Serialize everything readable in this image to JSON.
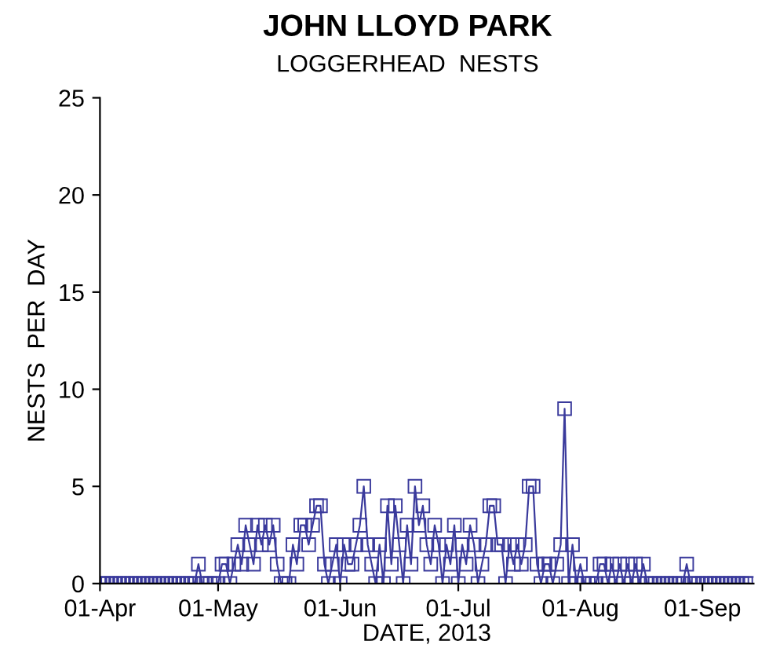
{
  "chart_data": {
    "type": "line",
    "title": "JOHN LLOYD PARK",
    "subtitle": "LOGGERHEAD  NESTS",
    "xlabel": "DATE, 2013",
    "ylabel": "NESTS  PER  DAY",
    "x": [
      "2013-04-01",
      "2013-04-02",
      "2013-04-03",
      "2013-04-04",
      "2013-04-05",
      "2013-04-06",
      "2013-04-07",
      "2013-04-08",
      "2013-04-09",
      "2013-04-10",
      "2013-04-11",
      "2013-04-12",
      "2013-04-13",
      "2013-04-14",
      "2013-04-15",
      "2013-04-16",
      "2013-04-17",
      "2013-04-18",
      "2013-04-19",
      "2013-04-20",
      "2013-04-21",
      "2013-04-22",
      "2013-04-23",
      "2013-04-24",
      "2013-04-25",
      "2013-04-26",
      "2013-04-27",
      "2013-04-28",
      "2013-04-29",
      "2013-04-30",
      "2013-05-01",
      "2013-05-02",
      "2013-05-03",
      "2013-05-04",
      "2013-05-05",
      "2013-05-06",
      "2013-05-07",
      "2013-05-08",
      "2013-05-09",
      "2013-05-10",
      "2013-05-11",
      "2013-05-12",
      "2013-05-13",
      "2013-05-14",
      "2013-05-15",
      "2013-05-16",
      "2013-05-17",
      "2013-05-18",
      "2013-05-19",
      "2013-05-20",
      "2013-05-21",
      "2013-05-22",
      "2013-05-23",
      "2013-05-24",
      "2013-05-25",
      "2013-05-26",
      "2013-05-27",
      "2013-05-28",
      "2013-05-29",
      "2013-05-30",
      "2013-05-31",
      "2013-06-01",
      "2013-06-02",
      "2013-06-03",
      "2013-06-04",
      "2013-06-05",
      "2013-06-06",
      "2013-06-07",
      "2013-06-08",
      "2013-06-09",
      "2013-06-10",
      "2013-06-11",
      "2013-06-12",
      "2013-06-13",
      "2013-06-14",
      "2013-06-15",
      "2013-06-16",
      "2013-06-17",
      "2013-06-18",
      "2013-06-19",
      "2013-06-20",
      "2013-06-21",
      "2013-06-22",
      "2013-06-23",
      "2013-06-24",
      "2013-06-25",
      "2013-06-26",
      "2013-06-27",
      "2013-06-28",
      "2013-06-29",
      "2013-06-30",
      "2013-07-01",
      "2013-07-02",
      "2013-07-03",
      "2013-07-04",
      "2013-07-05",
      "2013-07-06",
      "2013-07-07",
      "2013-07-08",
      "2013-07-09",
      "2013-07-10",
      "2013-07-11",
      "2013-07-12",
      "2013-07-13",
      "2013-07-14",
      "2013-07-15",
      "2013-07-16",
      "2013-07-17",
      "2013-07-18",
      "2013-07-19",
      "2013-07-20",
      "2013-07-21",
      "2013-07-22",
      "2013-07-23",
      "2013-07-24",
      "2013-07-25",
      "2013-07-26",
      "2013-07-27",
      "2013-07-28",
      "2013-07-29",
      "2013-07-30",
      "2013-07-31",
      "2013-08-01",
      "2013-08-02",
      "2013-08-03",
      "2013-08-04",
      "2013-08-05",
      "2013-08-06",
      "2013-08-07",
      "2013-08-08",
      "2013-08-09",
      "2013-08-10",
      "2013-08-11",
      "2013-08-12",
      "2013-08-13",
      "2013-08-14",
      "2013-08-15",
      "2013-08-16",
      "2013-08-17",
      "2013-08-18",
      "2013-08-19",
      "2013-08-20",
      "2013-08-21",
      "2013-08-22",
      "2013-08-23",
      "2013-08-24",
      "2013-08-25",
      "2013-08-26",
      "2013-08-27",
      "2013-08-28",
      "2013-08-29",
      "2013-08-30",
      "2013-08-31",
      "2013-09-01",
      "2013-09-02",
      "2013-09-03",
      "2013-09-04",
      "2013-09-05",
      "2013-09-06",
      "2013-09-07",
      "2013-09-08",
      "2013-09-09",
      "2013-09-10",
      "2013-09-11",
      "2013-09-12",
      "2013-09-13"
    ],
    "series": [
      {
        "color": "#3a3a9c",
        "values": [
          0,
          0,
          0,
          0,
          0,
          0,
          0,
          0,
          0,
          0,
          0,
          0,
          0,
          0,
          0,
          0,
          0,
          0,
          0,
          0,
          0,
          0,
          0,
          0,
          0,
          1,
          0,
          0,
          0,
          0,
          0,
          1,
          1,
          0,
          1,
          2,
          1,
          3,
          2,
          1,
          3,
          2,
          3,
          2,
          3,
          1,
          0,
          0,
          0,
          2,
          1,
          3,
          3,
          2,
          3,
          4,
          4,
          1,
          0,
          1,
          2,
          0,
          2,
          1,
          1,
          2,
          3,
          5,
          2,
          1,
          0,
          2,
          0,
          4,
          1,
          4,
          2,
          0,
          3,
          1,
          5,
          3,
          4,
          2,
          1,
          3,
          2,
          0,
          2,
          1,
          3,
          0,
          2,
          1,
          3,
          2,
          0,
          1,
          2,
          4,
          4,
          2,
          2,
          0,
          2,
          1,
          2,
          1,
          2,
          5,
          5,
          1,
          0,
          1,
          1,
          0,
          1,
          2,
          9,
          0,
          2,
          0,
          1,
          0,
          0,
          0,
          0,
          1,
          1,
          0,
          1,
          0,
          1,
          0,
          1,
          0,
          1,
          0,
          1,
          0,
          0,
          0,
          0,
          0,
          0,
          0,
          0,
          0,
          0,
          1,
          0,
          0,
          0,
          0,
          0,
          0,
          0,
          0,
          0,
          0,
          0,
          0,
          0,
          0,
          0,
          0
        ]
      }
    ],
    "marker": "square",
    "line_style": "solid",
    "grid": false,
    "legend": false,
    "xlim": [
      "2013-04-01",
      "2013-09-14"
    ],
    "xticks": [
      {
        "value": "2013-04-01",
        "label": "01-Apr"
      },
      {
        "value": "2013-05-01",
        "label": "01-May"
      },
      {
        "value": "2013-06-01",
        "label": "01-Jun"
      },
      {
        "value": "2013-07-01",
        "label": "01-Jul"
      },
      {
        "value": "2013-08-01",
        "label": "01-Aug"
      },
      {
        "value": "2013-09-01",
        "label": "01-Sep"
      }
    ],
    "ylim": [
      0,
      25
    ],
    "yticks": [
      0,
      5,
      10,
      15,
      20,
      25
    ]
  }
}
